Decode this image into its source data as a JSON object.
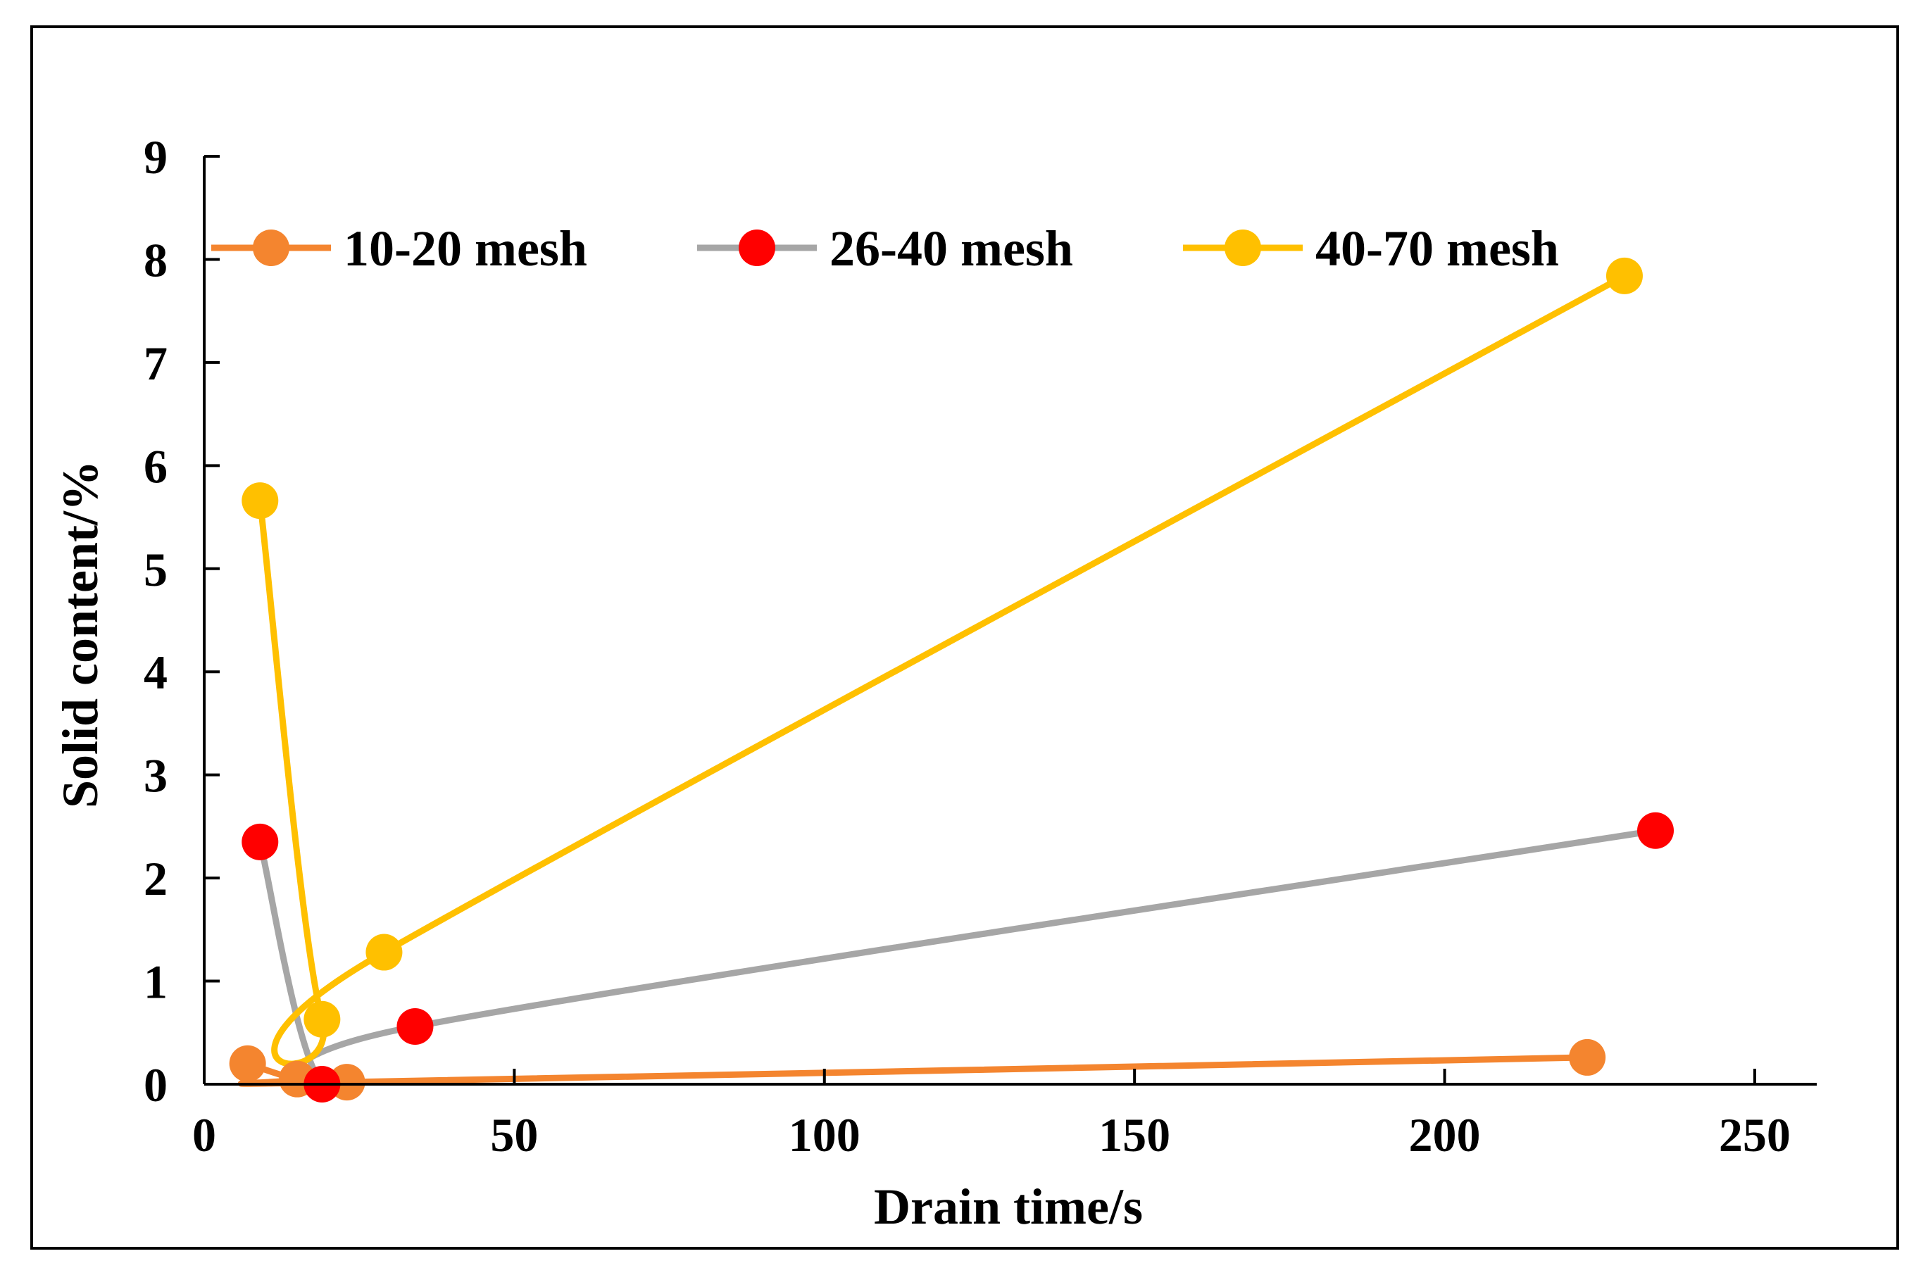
{
  "chart_data": {
    "type": "line",
    "title": "",
    "xlabel": "Drain time/s",
    "ylabel": "Solid content/%",
    "xlim": [
      0,
      260
    ],
    "ylim": [
      0,
      9
    ],
    "xticks": [
      "0",
      "50",
      "100",
      "150",
      "200",
      "250"
    ],
    "yticks": [
      "0",
      "1",
      "2",
      "3",
      "4",
      "5",
      "6",
      "7",
      "8",
      "9"
    ],
    "grid": false,
    "legend_position": "top",
    "series": [
      {
        "name": "10-20 mesh",
        "line_color": "#F4852F",
        "marker_color": "#F4852F",
        "x": [
          7,
          15,
          23,
          223
        ],
        "y": [
          0.2,
          0.05,
          0.02,
          0.26
        ]
      },
      {
        "name": "26-40 mesh",
        "line_color": "#A6A6A6",
        "marker_color": "#FF0000",
        "x": [
          9,
          19,
          34,
          234
        ],
        "y": [
          2.35,
          0.0,
          0.56,
          2.46
        ]
      },
      {
        "name": "40-70 mesh",
        "line_color": "#FFC000",
        "marker_color": "#FFC000",
        "x": [
          9,
          19,
          29,
          229
        ],
        "y": [
          5.66,
          0.63,
          1.28,
          7.84
        ]
      }
    ]
  }
}
